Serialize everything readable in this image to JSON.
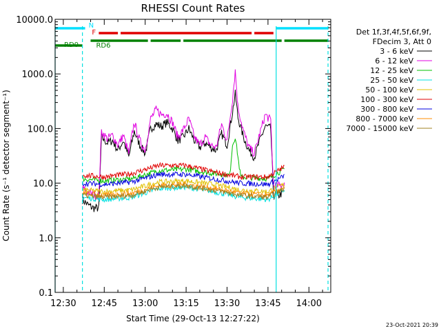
{
  "chart_data": {
    "type": "line",
    "title": "RHESSI Count Rates",
    "xlabel": "Start Time (29-Oct-13 12:27:22)",
    "ylabel": "Count Rate (s⁻¹ detector segment⁻¹)",
    "yscale": "log",
    "ylim": [
      0.1,
      10000
    ],
    "xlim": [
      "12:27",
      "14:08"
    ],
    "x_ticks": [
      "12:30",
      "12:45",
      "13:00",
      "13:15",
      "13:30",
      "13:45",
      "14:00"
    ],
    "y_ticks": [
      "0.1",
      "1.0",
      "10.0",
      "100.0",
      "1000.0",
      "10000.0"
    ],
    "grid": false,
    "legend_placement": "right",
    "legend_header": [
      "Det 1f,3f,4f,5f,6f,9f,",
      "FDecim 3, Att 0"
    ],
    "timestamp": "23-Oct-2021 20:39",
    "x_minutes_of_ticks": [
      3,
      18,
      33,
      48,
      63,
      78,
      93
    ],
    "series": [
      {
        "name": "3 - 6 keV",
        "color": "#000000",
        "x": [
          "12:37",
          "12:39",
          "12:41",
          "12:43",
          "12:44",
          "12:46",
          "12:48",
          "12:50",
          "12:52",
          "12:54",
          "12:56",
          "12:58",
          "13:00",
          "13:02",
          "13:04",
          "13:06",
          "13:08",
          "13:10",
          "13:12",
          "13:14",
          "13:16",
          "13:18",
          "13:20",
          "13:22",
          "13:24",
          "13:26",
          "13:28",
          "13:30",
          "13:32",
          "13:33",
          "13:34",
          "13:36",
          "13:38",
          "13:40",
          "13:42",
          "13:44",
          "13:46",
          "13:47",
          "13:49",
          "13:51"
        ],
        "values": [
          5,
          4,
          3.5,
          3.5,
          70,
          55,
          60,
          40,
          60,
          30,
          90,
          50,
          35,
          100,
          120,
          110,
          130,
          100,
          60,
          70,
          100,
          60,
          45,
          55,
          45,
          40,
          80,
          50,
          200,
          430,
          160,
          70,
          40,
          30,
          60,
          110,
          100,
          6,
          6,
          7
        ]
      },
      {
        "name": "6 - 12 keV",
        "color": "#e000e0",
        "x": [
          "12:37",
          "12:39",
          "12:41",
          "12:43",
          "12:44",
          "12:46",
          "12:48",
          "12:50",
          "12:52",
          "12:54",
          "12:56",
          "12:58",
          "13:00",
          "13:02",
          "13:04",
          "13:06",
          "13:08",
          "13:10",
          "13:12",
          "13:14",
          "13:16",
          "13:18",
          "13:20",
          "13:22",
          "13:24",
          "13:26",
          "13:28",
          "13:30",
          "13:32",
          "13:33",
          "13:34",
          "13:36",
          "13:38",
          "13:40",
          "13:42",
          "13:44",
          "13:46",
          "13:47",
          "13:49",
          "13:51"
        ],
        "values": [
          8,
          7,
          6,
          6,
          90,
          65,
          75,
          50,
          75,
          35,
          130,
          60,
          40,
          150,
          220,
          180,
          190,
          130,
          70,
          95,
          150,
          70,
          50,
          70,
          50,
          45,
          120,
          60,
          350,
          1150,
          250,
          90,
          45,
          35,
          80,
          180,
          140,
          9,
          9,
          10
        ]
      },
      {
        "name": "12 - 25 keV",
        "color": "#00c000",
        "x": [
          "12:37",
          "12:45",
          "12:55",
          "13:05",
          "13:15",
          "13:25",
          "13:31",
          "13:32",
          "13:33",
          "13:35",
          "13:45",
          "13:51"
        ],
        "values": [
          12,
          11,
          12,
          17,
          18,
          15,
          14,
          50,
          70,
          13,
          12,
          18
        ]
      },
      {
        "name": "25 - 50 keV",
        "color": "#00e0e0",
        "x": [
          "12:37",
          "12:45",
          "12:55",
          "13:05",
          "13:15",
          "13:25",
          "13:35",
          "13:45",
          "13:51"
        ],
        "values": [
          5.5,
          5,
          5.5,
          8,
          8.5,
          7,
          5.5,
          5,
          7.5
        ]
      },
      {
        "name": "50 - 100 keV",
        "color": "#e0c000",
        "x": [
          "12:37",
          "12:45",
          "12:55",
          "13:05",
          "13:15",
          "13:25",
          "13:35",
          "13:45",
          "13:51"
        ],
        "values": [
          7.5,
          7,
          7.5,
          10.5,
          11,
          9.5,
          7.5,
          7,
          9.5
        ]
      },
      {
        "name": "100 - 300 keV",
        "color": "#e00000",
        "x": [
          "12:37",
          "12:45",
          "12:55",
          "13:05",
          "13:15",
          "13:25",
          "13:35",
          "13:45",
          "13:51"
        ],
        "values": [
          14,
          13,
          15,
          21,
          21,
          16,
          13,
          13,
          20
        ]
      },
      {
        "name": "300 - 800 keV",
        "color": "#0000e0",
        "x": [
          "12:37",
          "12:45",
          "12:55",
          "13:05",
          "13:15",
          "13:25",
          "13:35",
          "13:45",
          "13:51"
        ],
        "values": [
          10,
          9.5,
          10.5,
          14.5,
          14.5,
          12,
          10,
          9.5,
          13.5
        ]
      },
      {
        "name": "800 - 7000 keV",
        "color": "#ff8c00",
        "x": [
          "12:37",
          "12:45",
          "12:55",
          "13:05",
          "13:15",
          "13:25",
          "13:35",
          "13:45",
          "13:51"
        ],
        "values": [
          6.5,
          6,
          6.5,
          9,
          9.5,
          8,
          6.5,
          6,
          8.5
        ]
      },
      {
        "name": "7000 - 15000 keV",
        "color": "#a08020",
        "x": [
          "12:37",
          "12:45",
          "12:55",
          "13:05",
          "13:15",
          "13:25",
          "13:35",
          "13:45",
          "13:51"
        ],
        "values": [
          6,
          5.5,
          6,
          8.5,
          9,
          7.5,
          6,
          5.5,
          8
        ]
      }
    ],
    "annotation_bars": [
      {
        "label": "N",
        "color": "#00e0ff",
        "segments": [
          [
            "12:27",
            "12:38"
          ],
          [
            "13:48",
            "14:07"
          ]
        ]
      },
      {
        "label": "F",
        "color": "#e00000",
        "segments": [
          [
            "12:43",
            "12:50"
          ],
          [
            "12:51",
            "13:39"
          ],
          [
            "13:40",
            "13:47"
          ]
        ]
      },
      {
        "label": "RD0",
        "color": "#008000",
        "segments": [
          [
            "12:27",
            "12:37"
          ]
        ]
      },
      {
        "label": "RD6",
        "color": "#008000",
        "segments": [
          [
            "12:40",
            "13:01"
          ],
          [
            "13:02",
            "13:13"
          ],
          [
            "13:14",
            "13:50"
          ],
          [
            "13:51",
            "14:07"
          ]
        ]
      }
    ],
    "vertical_lines": [
      {
        "x": "12:27",
        "color": "#00e0e0",
        "style": "solid"
      },
      {
        "x": "12:37",
        "color": "#00e0e0",
        "style": "dashed"
      },
      {
        "x": "13:48",
        "color": "#00e0e0",
        "style": "solid"
      },
      {
        "x": "14:07",
        "color": "#00e0e0",
        "style": "dashed"
      }
    ]
  }
}
